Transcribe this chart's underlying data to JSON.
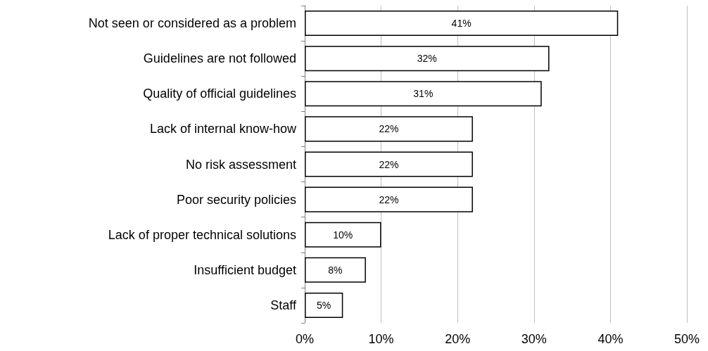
{
  "chart_data": {
    "type": "bar",
    "orientation": "horizontal",
    "categories": [
      "Not seen or considered as a problem",
      "Guidelines are not followed",
      "Quality of official guidelines",
      "Lack of internal know-how",
      "No risk assessment",
      "Poor security policies",
      "Lack of proper technical solutions",
      "Insufficient budget",
      "Staff"
    ],
    "values": [
      41,
      32,
      31,
      22,
      22,
      22,
      10,
      8,
      5
    ],
    "color": "#ffffff",
    "xlim": [
      0,
      50
    ],
    "xticks": [
      {
        "value": 0,
        "label": "0%"
      },
      {
        "value": 10,
        "label": "10%"
      },
      {
        "value": 20,
        "label": "20%"
      },
      {
        "value": 30,
        "label": "30%"
      },
      {
        "value": 40,
        "label": "40%"
      },
      {
        "value": 50,
        "label": "50%"
      }
    ],
    "value_labels": [
      "41%",
      "32%",
      "31%",
      "22%",
      "22%",
      "22%",
      "10%",
      "8%",
      "5%"
    ],
    "grid": "x"
  }
}
